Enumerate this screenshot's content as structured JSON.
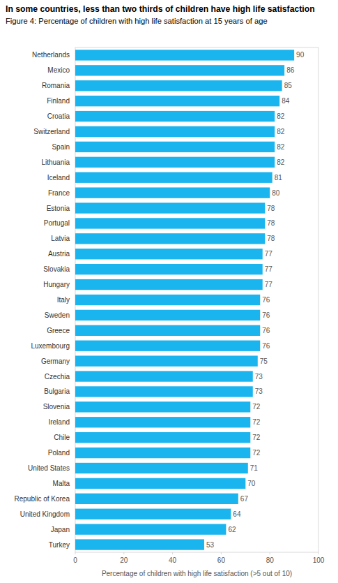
{
  "chart_data": {
    "type": "bar",
    "title": "In some countries, less than two thirds of children have high life satisfaction",
    "subtitle": "Figure 4: Percentage of children with high life satisfaction at 15 years of age",
    "categories": [
      "Netherlands",
      "Mexico",
      "Romania",
      "Finland",
      "Croatia",
      "Switzerland",
      "Spain",
      "Lithuania",
      "Iceland",
      "France",
      "Estonia",
      "Portugal",
      "Latvia",
      "Austria",
      "Slovakia",
      "Hungary",
      "Italy",
      "Sweden",
      "Greece",
      "Luxembourg",
      "Germany",
      "Czechia",
      "Bulgaria",
      "Slovenia",
      "Ireland",
      "Chile",
      "Poland",
      "United States",
      "Malta",
      "Republic of Korea",
      "United Kingdom",
      "Japan",
      "Turkey"
    ],
    "values": [
      90,
      86,
      85,
      84,
      82,
      82,
      82,
      82,
      81,
      80,
      78,
      78,
      78,
      77,
      77,
      77,
      76,
      76,
      76,
      76,
      75,
      73,
      73,
      72,
      72,
      72,
      72,
      71,
      70,
      67,
      64,
      62,
      53
    ],
    "color": "#1ab4ee",
    "orientation": "horizontal",
    "data_labels": true,
    "grid": false,
    "xlim": [
      0,
      100
    ],
    "xticks": [
      0,
      20,
      40,
      60,
      80,
      100
    ],
    "xlabel": "Percentage of children with high life satisfaction (>5 out of 10)"
  }
}
